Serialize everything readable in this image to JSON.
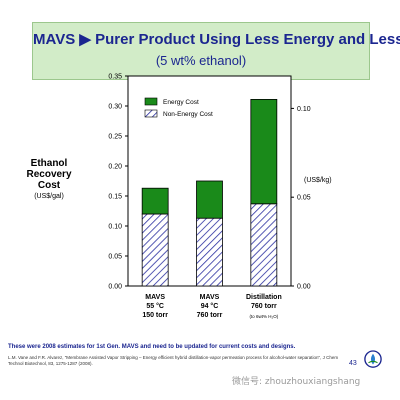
{
  "slide": {
    "title_main": "MAVS",
    "title_arrow": "▶",
    "title_rest": "Purer Product Using Less Energy and Less $",
    "subtitle": "(5 wt% ethanol)",
    "footnote": "These were 2008 estimates for 1st Gen. MAVS and need to be updated for current costs and designs.",
    "citation": "L.M. Vane and F.R. Alvarez, \"Membrane Assisted Vapor Stripping – Energy efficient hybrid distillation-vapor permeation process for alcohol-water separation\", J Chem Technol Biotechnol, 83, 1275-1287 (2008).",
    "slide_number": "43",
    "watermark": "微信号: zhouzhouxiangshang",
    "logo_icon": "epa-seal-icon"
  },
  "chart_data": {
    "type": "bar",
    "stacked": true,
    "ylabel_lines": [
      "Ethanol",
      "Recovery",
      "Cost"
    ],
    "ylabel_unit": "(US$/gal)",
    "y2label": "(US$/kg)",
    "ylim": [
      0,
      0.35
    ],
    "yticks": [
      "0.00",
      "0.05",
      "0.10",
      "0.15",
      "0.20",
      "0.25",
      "0.30",
      "0.35"
    ],
    "y2ticks": [
      "0.00",
      "0.05",
      "0.10"
    ],
    "y2_values": [
      0,
      0.05,
      0.1
    ],
    "y2_to_y": 2.96,
    "categories": [
      {
        "lines": [
          "MAVS",
          "55 °C",
          "150 torr"
        ]
      },
      {
        "lines": [
          "MAVS",
          "94 °C",
          "760 torr"
        ]
      },
      {
        "lines": [
          "Distillation",
          "760 torr"
        ],
        "note": "(to 6wt% H₂O)"
      }
    ],
    "series": [
      {
        "name": "Non-Energy Cost",
        "values": [
          0.12,
          0.113,
          0.137
        ],
        "pattern": "hatch"
      },
      {
        "name": "Energy Cost",
        "values": [
          0.043,
          0.062,
          0.174
        ],
        "color": "#1a8a1a"
      }
    ],
    "legend_placement": "top-left",
    "grid": false
  }
}
